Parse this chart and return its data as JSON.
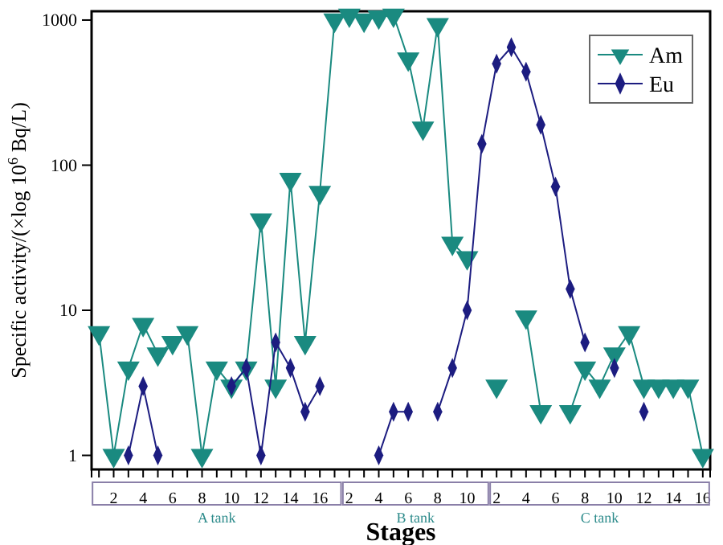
{
  "chart_data": {
    "type": "line",
    "xlabel": "Stages",
    "ylabel": "Specific activity/(×log 10$^{6}$ Bq/L)",
    "categories": [
      null,
      "2",
      null,
      "4",
      null,
      "6",
      null,
      "8",
      null,
      "10",
      null,
      "12",
      null,
      "14",
      null,
      "16",
      null,
      "2",
      null,
      "4",
      null,
      "6",
      null,
      "8",
      null,
      "10",
      null,
      "2",
      null,
      "4",
      null,
      "6",
      null,
      "8",
      null,
      "10",
      null,
      "12",
      null,
      "14",
      null,
      "16"
    ],
    "series": [
      {
        "name": "Am",
        "color": "#1a8a80",
        "marker": "triangle",
        "values": [
          7,
          1,
          4,
          8,
          5,
          6,
          7,
          1,
          4,
          3,
          4,
          42,
          3,
          80,
          6,
          65,
          1000,
          1080,
          1000,
          1050,
          1080,
          540,
          180,
          930,
          29,
          23,
          null,
          3,
          null,
          9,
          2,
          null,
          2,
          4,
          3,
          5,
          7,
          3,
          3,
          3,
          3,
          1
        ]
      },
      {
        "name": "Eu",
        "color": "#1c1c80",
        "marker": "diamond",
        "values": [
          null,
          null,
          1,
          3,
          1,
          null,
          null,
          null,
          null,
          3,
          4,
          1,
          6,
          4,
          2,
          3,
          null,
          null,
          null,
          1,
          2,
          2,
          null,
          2,
          4,
          10,
          140,
          500,
          650,
          440,
          190,
          71,
          14,
          6,
          null,
          4,
          null,
          2,
          null,
          null,
          null,
          null
        ]
      }
    ],
    "annotations": [
      "A tank",
      "B tank",
      "C tank"
    ],
    "log": "y",
    "ylim": [
      0.8,
      1150
    ],
    "yticks": [
      1,
      10,
      100,
      1000
    ],
    "grid": false,
    "legend": "top right",
    "line_style": "solid"
  }
}
